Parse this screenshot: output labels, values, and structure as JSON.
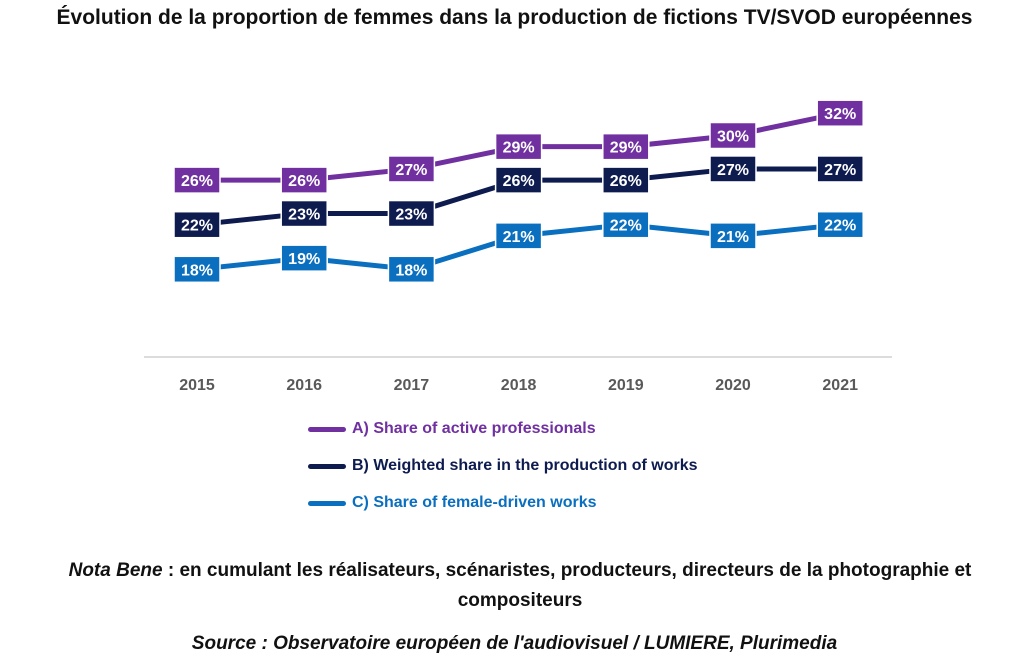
{
  "title": "Évolution de la proportion de femmes dans la production de fictions TV/SVOD européennes",
  "note": {
    "prefix": "Nota Bene",
    "text": " : en cumulant les réalisateurs, scénaristes, producteurs, directeurs de la photographie et compositeurs"
  },
  "source": "Source : Observatoire européen de l'audiovisuel / LUMIERE, Plurimedia",
  "chart_data": {
    "type": "line",
    "categories": [
      "2015",
      "2016",
      "2017",
      "2018",
      "2019",
      "2020",
      "2021"
    ],
    "series": [
      {
        "name": "A) Share of active professionals",
        "color": "#7030A0",
        "values": [
          26,
          26,
          27,
          29,
          29,
          30,
          32
        ],
        "labels": [
          "26%",
          "26%",
          "27%",
          "29%",
          "29%",
          "30%",
          "32%"
        ]
      },
      {
        "name": "B) Weighted share in the production of works",
        "color": "#0D1B4F",
        "values": [
          22,
          23,
          23,
          26,
          26,
          27,
          27
        ],
        "labels": [
          "22%",
          "23%",
          "23%",
          "26%",
          "26%",
          "27%",
          "27%"
        ]
      },
      {
        "name": "C) Share of female-driven works",
        "color": "#0A6FBF",
        "values": [
          18,
          19,
          18,
          21,
          22,
          21,
          22
        ],
        "labels": [
          "18%",
          "19%",
          "18%",
          "21%",
          "22%",
          "21%",
          "22%"
        ]
      }
    ],
    "legend_position": "bottom",
    "grid": false
  }
}
